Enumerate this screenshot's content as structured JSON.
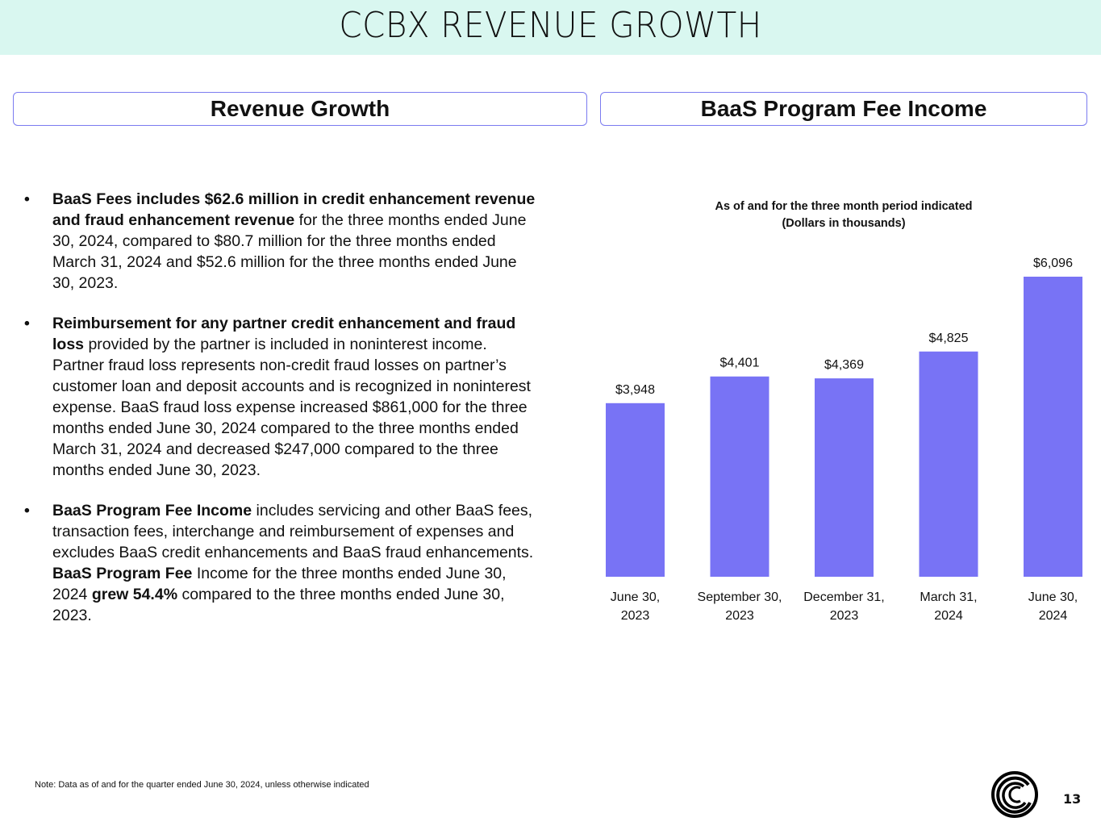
{
  "header": {
    "title": "CCBX REVENUE GROWTH"
  },
  "sections": {
    "left_title": "Revenue Growth",
    "right_title": "BaaS Program Fee Income"
  },
  "bullets": [
    {
      "segments": [
        {
          "text": "BaaS Fees includes $62.6 million in credit enhancement revenue and fraud enhancement revenue",
          "bold": true
        },
        {
          "text": " for the three months ended June 30, 2024, compared to $80.7 million for the three months ended March 31, 2024 and $52.6 million for the three months ended June 30, 2023.",
          "bold": false
        }
      ]
    },
    {
      "segments": [
        {
          "text": "Reimbursement for any partner credit enhancement and fraud loss",
          "bold": true
        },
        {
          "text": " provided by the partner is included in noninterest income. Partner fraud loss represents non-credit fraud losses on partner’s customer loan and deposit accounts and is recognized in noninterest expense.  BaaS fraud loss expense increased $861,000 for the three months ended June 30, 2024 compared to the three months ended March 31, 2024 and decreased $247,000 compared to the three months ended June 30, 2023.",
          "bold": false
        }
      ]
    },
    {
      "segments": [
        {
          "text": "BaaS Program Fee Income",
          "bold": true
        },
        {
          "text": " includes servicing and other BaaS fees, transaction fees, interchange and reimbursement of expenses and excludes BaaS credit enhancements and BaaS fraud enhancements.  ",
          "bold": false
        },
        {
          "text": "BaaS Program Fee",
          "bold": true
        },
        {
          "text": " Income for the three months ended June 30, 2024 ",
          "bold": false
        },
        {
          "text": "grew 54.4%",
          "bold": true
        },
        {
          "text": " compared to the three months ended June 30, 2023.",
          "bold": false
        }
      ]
    }
  ],
  "bullet_glyph": "•",
  "chart_data": {
    "type": "bar",
    "title": "As of and for the three month period indicated",
    "subtitle": "(Dollars in thousands)",
    "categories": [
      [
        "June 30,",
        "2023"
      ],
      [
        "September 30,",
        "2023"
      ],
      [
        "December 31,",
        "2023"
      ],
      [
        "March 31,",
        "2024"
      ],
      [
        "June 30,",
        "2024"
      ]
    ],
    "values": [
      3948,
      4401,
      4369,
      4825,
      6096
    ],
    "data_labels": [
      "$3,948",
      "$4,401",
      "$4,369",
      "$4,825",
      "$6,096"
    ],
    "xlabel": "",
    "ylabel": "",
    "ylim": [
      1000,
      6096
    ],
    "grid": false,
    "legend": "none",
    "bar_color": "#7873f5"
  },
  "footer": {
    "note": "Note:  Data as of and for the quarter ended June 30, 2024, unless otherwise indicated",
    "page_number": "13",
    "logo_icon": "company-swirl-logo"
  }
}
